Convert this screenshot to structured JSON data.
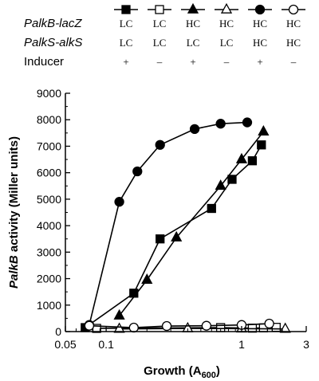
{
  "chart_data": {
    "type": "line",
    "x_scale": "log",
    "xlabel": {
      "main": "Growth (A",
      "sub": "600",
      "close": ")"
    },
    "ylabel": {
      "italic": "PalkB",
      "rest": " activity (Miller units)"
    },
    "xlim": [
      0.05,
      3
    ],
    "ylim": [
      0,
      9000
    ],
    "x_ticks": [
      {
        "value": 0.05,
        "label": "0.05"
      },
      {
        "value": 0.1,
        "label": "0.1"
      },
      {
        "value": 1,
        "label": "1"
      },
      {
        "value": 3,
        "label": "3"
      }
    ],
    "y_ticks": [
      {
        "value": 0,
        "label": "0"
      },
      {
        "value": 1000,
        "label": "1000"
      },
      {
        "value": 2000,
        "label": "2000"
      },
      {
        "value": 3000,
        "label": "3000"
      },
      {
        "value": 4000,
        "label": "4000"
      },
      {
        "value": 5000,
        "label": "5000"
      },
      {
        "value": 6000,
        "label": "6000"
      },
      {
        "value": 7000,
        "label": "7000"
      },
      {
        "value": 8000,
        "label": "8000"
      },
      {
        "value": 9000,
        "label": "9000"
      }
    ],
    "grid": false,
    "legend": {
      "position": "top",
      "row_labels": [
        {
          "italic": "PalkB",
          "rest": "-lacZ"
        },
        {
          "italic": "PalkS",
          "rest": "-alkS"
        },
        {
          "italic": "",
          "rest": "Inducer"
        }
      ],
      "columns": [
        {
          "marker": "square",
          "filled": true,
          "lacZ": "LC",
          "alkS": "LC",
          "inducer": "+"
        },
        {
          "marker": "square",
          "filled": false,
          "lacZ": "LC",
          "alkS": "LC",
          "inducer": "–"
        },
        {
          "marker": "triangle",
          "filled": true,
          "lacZ": "HC",
          "alkS": "LC",
          "inducer": "+"
        },
        {
          "marker": "triangle",
          "filled": false,
          "lacZ": "HC",
          "alkS": "LC",
          "inducer": "–"
        },
        {
          "marker": "circle",
          "filled": true,
          "lacZ": "HC",
          "alkS": "HC",
          "inducer": "+"
        },
        {
          "marker": "circle",
          "filled": false,
          "lacZ": "HC",
          "alkS": "HC",
          "inducer": "–"
        }
      ]
    },
    "series": [
      {
        "marker": "square",
        "filled": true,
        "x": [
          0.07,
          0.16,
          0.25,
          0.6,
          0.85,
          1.2,
          1.4
        ],
        "y": [
          150,
          1450,
          3500,
          4650,
          5750,
          6450,
          7050
        ]
      },
      {
        "marker": "square",
        "filled": false,
        "x": [
          0.085,
          0.7,
          1.2,
          1.45,
          1.8
        ],
        "y": [
          120,
          150,
          130,
          140,
          160
        ]
      },
      {
        "marker": "triangle",
        "filled": true,
        "x": [
          0.125,
          0.2,
          0.33,
          0.7,
          1.0,
          1.45
        ],
        "y": [
          600,
          1950,
          3550,
          5500,
          6500,
          7550
        ]
      },
      {
        "marker": "triangle",
        "filled": false,
        "x": [
          0.125,
          0.4,
          1.0,
          2.1
        ],
        "y": [
          100,
          120,
          110,
          100
        ]
      },
      {
        "marker": "circle",
        "filled": true,
        "x": [
          0.075,
          0.125,
          0.17,
          0.25,
          0.45,
          0.7,
          1.1
        ],
        "y": [
          250,
          4900,
          6050,
          7050,
          7650,
          7850,
          7900
        ]
      },
      {
        "marker": "circle",
        "filled": false,
        "x": [
          0.075,
          0.16,
          0.28,
          0.55,
          1.0,
          1.6
        ],
        "y": [
          220,
          150,
          210,
          220,
          250,
          300
        ]
      }
    ]
  }
}
